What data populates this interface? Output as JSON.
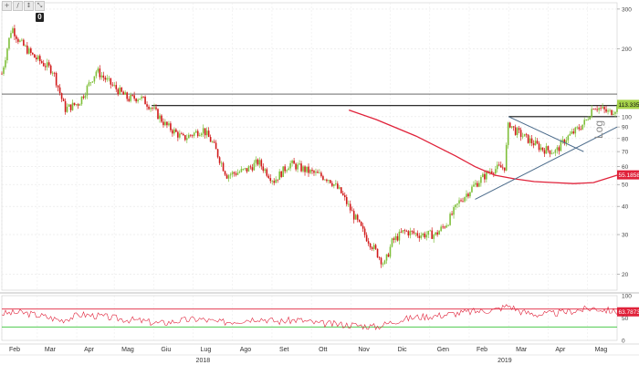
{
  "toolbar": {
    "buttons": [
      {
        "icon": "plus-icon",
        "glyph": "+"
      },
      {
        "icon": "pencil-icon",
        "glyph": "/"
      },
      {
        "icon": "zoom-icon",
        "glyph": "↕"
      },
      {
        "icon": "expand-icon",
        "glyph": "⤡"
      }
    ],
    "badge": "0"
  },
  "scale_label": "Log",
  "colors": {
    "up": "#7fbf3a",
    "down": "#d11a1a",
    "ma": "#e0223a",
    "trend": "#4a6a8a",
    "rsi": "#e0223a",
    "rsi_upper": "#e0223a",
    "rsi_lower": "#34c234",
    "price_badge": "#a6d24a",
    "ma_badge": "#e0223a"
  },
  "chart_data": {
    "type": "candlestick",
    "scale": "log",
    "ylim": [
      17,
      320
    ],
    "yticks": [
      20,
      30,
      40,
      50,
      60,
      70,
      80,
      90,
      100,
      200,
      300
    ],
    "months": [
      {
        "label": "Feb",
        "t": 0.0
      },
      {
        "label": "Mar",
        "t": 0.9
      },
      {
        "label": "Apr",
        "t": 1.9
      },
      {
        "label": "Mag",
        "t": 2.85
      },
      {
        "label": "Giu",
        "t": 3.85
      },
      {
        "label": "Lug",
        "t": 4.85
      },
      {
        "label": "Ago",
        "t": 5.85
      },
      {
        "label": "Set",
        "t": 6.85
      },
      {
        "label": "Ott",
        "t": 7.85
      },
      {
        "label": "Nov",
        "t": 8.85
      },
      {
        "label": "Dic",
        "t": 9.85
      },
      {
        "label": "Gen",
        "t": 10.85
      },
      {
        "label": "Feb",
        "t": 11.85
      },
      {
        "label": "Mar",
        "t": 12.85
      },
      {
        "label": "Apr",
        "t": 13.85
      },
      {
        "label": "Mag",
        "t": 14.85
      }
    ],
    "years": [
      {
        "label": "2018",
        "t": 5.1
      },
      {
        "label": "2019",
        "t": 12.75
      }
    ],
    "price_path": [
      [
        0.0,
        155
      ],
      [
        0.25,
        250
      ],
      [
        0.45,
        215
      ],
      [
        0.8,
        185
      ],
      [
        1.3,
        160
      ],
      [
        1.6,
        108
      ],
      [
        1.95,
        115
      ],
      [
        2.4,
        160
      ],
      [
        2.75,
        140
      ],
      [
        3.2,
        120
      ],
      [
        3.5,
        122
      ],
      [
        3.8,
        110
      ],
      [
        4.15,
        92
      ],
      [
        4.6,
        80
      ],
      [
        5.1,
        88
      ],
      [
        5.35,
        76
      ],
      [
        5.7,
        55
      ],
      [
        6.2,
        58
      ],
      [
        6.5,
        63
      ],
      [
        6.9,
        52
      ],
      [
        7.3,
        62
      ],
      [
        7.8,
        57
      ],
      [
        8.3,
        53
      ],
      [
        8.6,
        46
      ],
      [
        8.9,
        37
      ],
      [
        9.2,
        30
      ],
      [
        9.5,
        25
      ],
      [
        9.7,
        22
      ],
      [
        9.9,
        28
      ],
      [
        10.2,
        31
      ],
      [
        10.6,
        30
      ],
      [
        11.0,
        30
      ],
      [
        11.3,
        34
      ],
      [
        11.6,
        42
      ],
      [
        12.0,
        50
      ],
      [
        12.4,
        58
      ],
      [
        12.75,
        60
      ],
      [
        12.85,
        95
      ],
      [
        13.0,
        87
      ],
      [
        13.4,
        78
      ],
      [
        13.7,
        72
      ],
      [
        14.05,
        70
      ],
      [
        14.3,
        80
      ],
      [
        14.6,
        88
      ],
      [
        14.8,
        95
      ],
      [
        15.0,
        112
      ],
      [
        15.4,
        104
      ],
      [
        15.6,
        110
      ]
    ],
    "moving_average": {
      "name": "",
      "last_value": "55.1858",
      "path": [
        [
          8.8,
          107
        ],
        [
          9.5,
          97
        ],
        [
          10.5,
          82
        ],
        [
          11.5,
          67
        ],
        [
          12.0,
          60
        ],
        [
          12.5,
          55
        ],
        [
          13.0,
          53
        ],
        [
          13.5,
          51.5
        ],
        [
          14.0,
          51
        ],
        [
          14.5,
          50.5
        ],
        [
          15.0,
          51
        ],
        [
          15.6,
          55
        ]
      ]
    },
    "last_price": "113.3350",
    "horizontal_lines": [
      {
        "y": 126,
        "t0": 0.0,
        "t1": 15.6
      },
      {
        "y": 112,
        "t0": 3.8,
        "t1": 15.6
      },
      {
        "y": 100,
        "t0": 12.85,
        "t1": 15.6
      }
    ],
    "trendlines": [
      {
        "t0": 12.85,
        "y0": 100,
        "t1": 14.75,
        "y1": 70
      },
      {
        "t0": 12.0,
        "y0": 43,
        "t1": 15.6,
        "y1": 90
      }
    ],
    "rsi": {
      "ylim": [
        0,
        100
      ],
      "yticks": [
        0,
        50,
        100
      ],
      "upper_level": 70,
      "lower_level": 30,
      "last_value": "63.7873",
      "path": [
        [
          0.0,
          60
        ],
        [
          0.5,
          62
        ],
        [
          1.0,
          55
        ],
        [
          1.5,
          45
        ],
        [
          2.0,
          58
        ],
        [
          2.5,
          54
        ],
        [
          3.0,
          48
        ],
        [
          3.5,
          44
        ],
        [
          4.0,
          38
        ],
        [
          4.5,
          44
        ],
        [
          5.0,
          48
        ],
        [
          5.5,
          40
        ],
        [
          6.0,
          44
        ],
        [
          6.5,
          50
        ],
        [
          7.0,
          42
        ],
        [
          7.5,
          46
        ],
        [
          8.0,
          38
        ],
        [
          8.5,
          36
        ],
        [
          9.0,
          34
        ],
        [
          9.5,
          30
        ],
        [
          10.0,
          44
        ],
        [
          10.5,
          52
        ],
        [
          11.0,
          55
        ],
        [
          11.5,
          60
        ],
        [
          12.0,
          65
        ],
        [
          12.5,
          68
        ],
        [
          12.85,
          78
        ],
        [
          13.2,
          63
        ],
        [
          13.6,
          58
        ],
        [
          14.0,
          60
        ],
        [
          14.5,
          66
        ],
        [
          15.0,
          72
        ],
        [
          15.6,
          64
        ]
      ]
    }
  }
}
